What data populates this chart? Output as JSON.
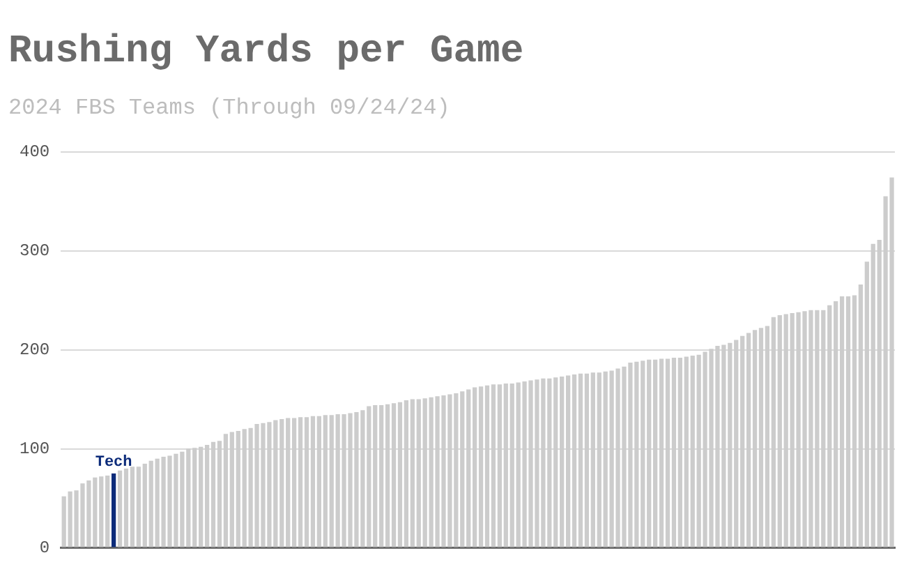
{
  "chart_data": {
    "type": "bar",
    "title": "Rushing Yards per Game",
    "subtitle": "2024 FBS Teams (Through 09/24/24)",
    "categories": [
      null,
      null,
      null,
      null,
      null,
      null,
      null,
      null,
      "Tech",
      null,
      null,
      null,
      null,
      null,
      null,
      null,
      null,
      null,
      null,
      null,
      null,
      null,
      null,
      null,
      null,
      null,
      null,
      null,
      null,
      null,
      null,
      null,
      null,
      null,
      null,
      null,
      null,
      null,
      null,
      null,
      null,
      null,
      null,
      null,
      null,
      null,
      null,
      null,
      null,
      null,
      null,
      null,
      null,
      null,
      null,
      null,
      null,
      null,
      null,
      null,
      null,
      null,
      null,
      null,
      null,
      null,
      null,
      null,
      null,
      null,
      null,
      null,
      null,
      null,
      null,
      null,
      null,
      null,
      null,
      null,
      null,
      null,
      null,
      null,
      null,
      null,
      null,
      null,
      null,
      null,
      null,
      null,
      null,
      null,
      null,
      null,
      null,
      null,
      null,
      null,
      null,
      null,
      null,
      null,
      null,
      null,
      null,
      null,
      null,
      null,
      null,
      null,
      null,
      null,
      null,
      null,
      null,
      null,
      null,
      null,
      null,
      null,
      null,
      null,
      null,
      null,
      null,
      null,
      null,
      null,
      null,
      null,
      null,
      null
    ],
    "values": [
      52,
      57,
      58,
      65,
      68,
      71,
      72,
      73,
      75,
      78,
      80,
      82,
      82,
      85,
      88,
      90,
      92,
      93,
      95,
      97,
      100,
      101,
      102,
      104,
      107,
      108,
      115,
      117,
      118,
      120,
      121,
      125,
      126,
      127,
      129,
      130,
      131,
      131,
      132,
      132,
      133,
      133,
      134,
      134,
      135,
      135,
      136,
      137,
      139,
      143,
      144,
      144,
      145,
      146,
      147,
      149,
      150,
      150,
      151,
      152,
      153,
      154,
      155,
      156,
      158,
      160,
      162,
      163,
      164,
      165,
      165,
      166,
      166,
      167,
      168,
      169,
      170,
      171,
      171,
      172,
      173,
      174,
      175,
      176,
      176,
      177,
      177,
      178,
      179,
      181,
      183,
      187,
      188,
      189,
      190,
      190,
      191,
      191,
      192,
      192,
      193,
      194,
      195,
      198,
      201,
      204,
      205,
      207,
      210,
      214,
      217,
      220,
      222,
      224,
      233,
      235,
      236,
      237,
      238,
      239,
      240,
      240,
      240,
      245,
      249,
      254,
      254,
      255,
      266,
      289,
      307,
      311,
      355,
      374
    ],
    "colors": [
      "#cccccc",
      "#cccccc",
      "#cccccc",
      "#cccccc",
      "#cccccc",
      "#cccccc",
      "#cccccc",
      "#cccccc",
      "#0c2b7a",
      "#cccccc",
      "#cccccc",
      "#cccccc",
      "#cccccc",
      "#cccccc",
      "#cccccc",
      "#cccccc",
      "#cccccc",
      "#cccccc",
      "#cccccc",
      "#cccccc",
      "#cccccc",
      "#cccccc",
      "#cccccc",
      "#cccccc",
      "#cccccc",
      "#cccccc",
      "#cccccc",
      "#cccccc",
      "#cccccc",
      "#cccccc",
      "#cccccc",
      "#cccccc",
      "#cccccc",
      "#cccccc",
      "#cccccc",
      "#cccccc",
      "#cccccc",
      "#cccccc",
      "#cccccc",
      "#cccccc",
      "#cccccc",
      "#cccccc",
      "#cccccc",
      "#cccccc",
      "#cccccc",
      "#cccccc",
      "#cccccc",
      "#cccccc",
      "#cccccc",
      "#cccccc",
      "#cccccc",
      "#cccccc",
      "#cccccc",
      "#cccccc",
      "#cccccc",
      "#cccccc",
      "#cccccc",
      "#cccccc",
      "#cccccc",
      "#cccccc",
      "#cccccc",
      "#cccccc",
      "#cccccc",
      "#cccccc",
      "#cccccc",
      "#cccccc",
      "#cccccc",
      "#cccccc",
      "#cccccc",
      "#cccccc",
      "#cccccc",
      "#cccccc",
      "#cccccc",
      "#cccccc",
      "#cccccc",
      "#cccccc",
      "#cccccc",
      "#cccccc",
      "#cccccc",
      "#cccccc",
      "#cccccc",
      "#cccccc",
      "#cccccc",
      "#cccccc",
      "#cccccc",
      "#cccccc",
      "#cccccc",
      "#cccccc",
      "#cccccc",
      "#cccccc",
      "#cccccc",
      "#cccccc",
      "#cccccc",
      "#cccccc",
      "#cccccc",
      "#cccccc",
      "#cccccc",
      "#cccccc",
      "#cccccc",
      "#cccccc",
      "#cccccc",
      "#cccccc",
      "#cccccc",
      "#cccccc",
      "#cccccc",
      "#cccccc",
      "#cccccc",
      "#cccccc",
      "#cccccc",
      "#cccccc",
      "#cccccc",
      "#cccccc",
      "#cccccc",
      "#cccccc",
      "#cccccc",
      "#cccccc",
      "#cccccc",
      "#cccccc",
      "#cccccc",
      "#cccccc",
      "#cccccc",
      "#cccccc",
      "#cccccc",
      "#cccccc",
      "#cccccc",
      "#cccccc",
      "#cccccc",
      "#cccccc",
      "#cccccc",
      "#cccccc",
      "#cccccc",
      "#cccccc",
      "#cccccc",
      "#cccccc"
    ],
    "ylim": [
      0,
      400
    ],
    "yticks": [
      0,
      100,
      200,
      300,
      400
    ],
    "grid": "y",
    "tick_labels": "y"
  }
}
